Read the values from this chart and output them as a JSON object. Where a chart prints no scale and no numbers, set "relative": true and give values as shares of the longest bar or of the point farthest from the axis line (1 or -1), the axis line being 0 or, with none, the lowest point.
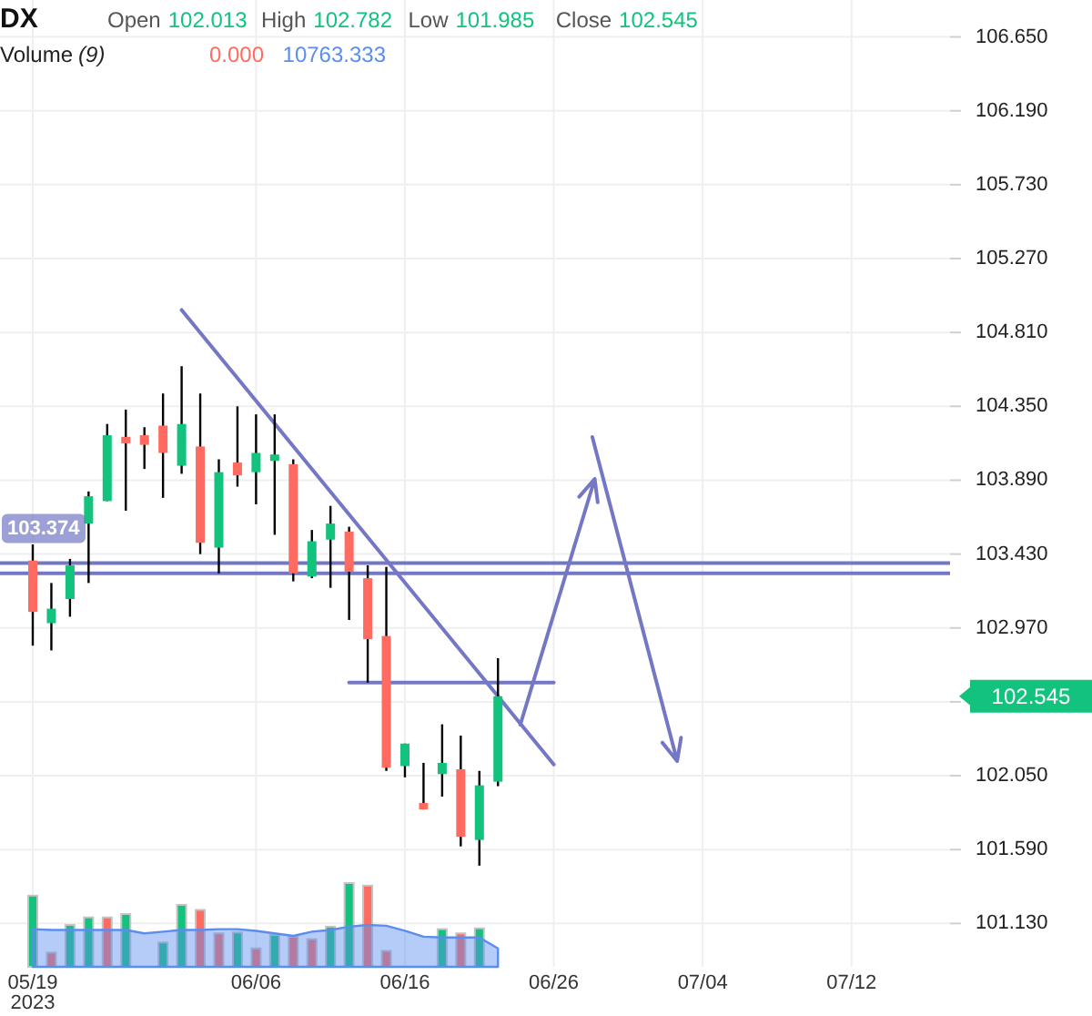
{
  "chart_data": [
    {
      "type": "candlestick",
      "title": "DX",
      "annotations": [
        "Open 102.013",
        "High 102.782",
        "Low 101.985",
        "Close 102.545",
        "102.545"
      ],
      "categories": [
        "05/19\n2023",
        null,
        null,
        null,
        null,
        null,
        null,
        null,
        null,
        null,
        null,
        null,
        "06/06",
        null,
        null,
        null,
        null,
        null,
        null,
        null,
        "06/16",
        null,
        null,
        null,
        null,
        null,
        null,
        null,
        "06/26",
        null,
        null,
        null,
        null,
        null,
        null,
        null,
        "07/04",
        null,
        null,
        null,
        null,
        null,
        null,
        null,
        "07/12",
        null,
        null,
        null,
        null,
        null
      ],
      "ohlc": [
        [
          103.39,
          103.49,
          102.86,
          103.07
        ],
        [
          103.0,
          103.25,
          102.83,
          103.09
        ],
        [
          103.15,
          103.4,
          103.04,
          103.36
        ],
        [
          103.62,
          103.82,
          103.25,
          103.79
        ],
        [
          103.76,
          104.24,
          103.76,
          104.17
        ],
        [
          104.16,
          104.33,
          103.7,
          104.12
        ],
        [
          104.17,
          104.22,
          103.96,
          104.11
        ],
        [
          104.23,
          104.43,
          103.78,
          104.06
        ],
        [
          103.98,
          104.6,
          103.93,
          104.24
        ],
        [
          104.1,
          104.43,
          103.43,
          103.5
        ],
        [
          103.47,
          104.02,
          103.31,
          103.94
        ],
        [
          104.0,
          104.35,
          103.85,
          103.92
        ],
        [
          103.94,
          104.3,
          103.74,
          104.06
        ],
        [
          104.01,
          104.3,
          103.55,
          104.05
        ],
        [
          103.99,
          104.02,
          103.26,
          103.31
        ],
        [
          103.29,
          103.58,
          103.28,
          103.51
        ],
        [
          103.52,
          103.73,
          103.22,
          103.62
        ],
        [
          103.57,
          103.6,
          103.02,
          103.32
        ],
        [
          103.28,
          103.36,
          102.63,
          102.9
        ],
        [
          102.92,
          103.35,
          102.08,
          102.1
        ],
        [
          102.11,
          102.25,
          102.04,
          102.25
        ],
        [
          101.88,
          102.13,
          101.84,
          101.84
        ],
        [
          102.06,
          102.37,
          101.92,
          102.13
        ],
        [
          102.09,
          102.3,
          101.61,
          101.67
        ],
        [
          101.65,
          102.08,
          101.49,
          101.99
        ],
        [
          102.013,
          102.782,
          101.985,
          102.545
        ],
        null,
        null,
        null,
        null,
        null,
        null,
        null,
        null,
        null,
        null,
        null,
        null,
        null,
        null,
        null,
        null,
        null,
        null,
        null,
        null,
        null,
        null,
        null,
        null
      ],
      "colors": [
        "#ff6b60",
        "#12c27d",
        "#12c27d",
        "#12c27d",
        "#12c27d",
        "#ff6b60",
        "#ff6b60",
        "#ff6b60",
        "#12c27d",
        "#ff6b60",
        "#12c27d",
        "#ff6b60",
        "#12c27d",
        "#12c27d",
        "#ff6b60",
        "#12c27d",
        "#12c27d",
        "#ff6b60",
        "#ff6b60",
        "#ff6b60",
        "#12c27d",
        "#ff6b60",
        "#12c27d",
        "#ff6b60",
        "#12c27d",
        "#12c27d",
        null,
        null,
        null,
        null,
        null,
        null,
        null,
        null,
        null,
        null,
        null,
        null,
        null,
        null,
        null,
        null,
        null,
        null,
        null,
        null,
        null,
        null,
        null,
        null
      ],
      "series": [
        {
          "type": "line",
          "color": "#7478c4",
          "values": [
            null,
            null,
            null,
            null,
            null,
            null,
            null,
            null,
            104.95,
            null,
            null,
            null,
            null,
            null,
            null,
            null,
            null,
            null,
            null,
            null,
            null,
            null,
            null,
            null,
            null,
            null,
            null,
            null,
            102.12,
            null,
            null,
            null,
            null,
            null,
            null,
            null,
            null,
            null,
            null,
            null,
            null,
            null,
            null,
            null,
            null,
            null,
            null,
            null,
            null,
            null
          ]
        },
        {
          "type": "line",
          "color": "#7478c4",
          "values": [
            null,
            null,
            null,
            null,
            null,
            null,
            null,
            null,
            null,
            null,
            null,
            null,
            null,
            null,
            null,
            null,
            null,
            102.63,
            null,
            null,
            null,
            null,
            null,
            null,
            null,
            null,
            null,
            null,
            102.63,
            null,
            null,
            null,
            null,
            null,
            null,
            null,
            null,
            null,
            null,
            null,
            null,
            null,
            null,
            null,
            null,
            null,
            null,
            null,
            null,
            null
          ]
        }
      ],
      "ylim": [
        100.86,
        106.88
      ],
      "yticks": [
        {
          "value": 106.65,
          "label": "106.650"
        },
        {
          "value": 106.19,
          "label": "106.190"
        },
        {
          "value": 105.73,
          "label": "105.730"
        },
        {
          "value": 105.27,
          "label": "105.270"
        },
        {
          "value": 104.81,
          "label": "104.810"
        },
        {
          "value": 104.35,
          "label": "104.350"
        },
        {
          "value": 103.89,
          "label": "103.890"
        },
        {
          "value": 103.43,
          "label": "103.430"
        },
        {
          "value": 102.97,
          "label": "102.970"
        },
        {
          "value": 102.51,
          "label": null
        },
        {
          "value": 102.05,
          "label": "102.050"
        },
        {
          "value": 101.59,
          "label": "101.590"
        },
        {
          "value": 101.13,
          "label": "101.130"
        }
      ],
      "grid": true,
      "ref_lines": [
        {
          "axis": "y",
          "value": 103.374,
          "label": "103.374",
          "color": "#7478c4"
        },
        {
          "axis": "y",
          "value": 103.31,
          "color": "#7478c4"
        }
      ]
    },
    {
      "type": "bar",
      "title": "Volume (9)",
      "relative": true,
      "annotations": [
        "0.000",
        "10763.333"
      ],
      "categories": [
        null,
        null,
        null,
        null,
        null,
        null,
        null,
        null,
        null,
        null,
        null,
        null,
        null,
        null,
        null,
        null,
        null,
        null,
        null,
        null,
        null,
        null,
        null,
        null,
        null,
        null,
        null,
        null,
        null,
        null,
        null,
        null,
        null,
        null,
        null,
        null,
        null,
        null,
        null,
        null,
        null,
        null,
        null,
        null,
        null,
        null,
        null,
        null,
        null,
        null
      ],
      "series": [
        {
          "values": [
            0.85,
            0.17,
            0.5,
            0.59,
            0.59,
            0.63,
            null,
            0.29,
            0.74,
            0.68,
            0.4,
            0.41,
            0.22,
            0.38,
            0.36,
            0.33,
            0.48,
            1,
            0.97,
            0.19,
            null,
            null,
            0.45,
            0.4,
            0.46,
            null,
            null,
            null,
            null,
            null,
            null,
            null,
            null,
            null,
            null,
            null,
            null,
            null,
            null,
            null,
            null,
            null,
            null,
            null,
            null,
            null,
            null,
            null,
            null,
            null
          ],
          "colors": [
            "#12c27d",
            "#ff6b60",
            "#12c27d",
            "#12c27d",
            "#ff6b60",
            "#12c27d",
            null,
            "#12c27d",
            "#12c27d",
            "#ff6b60",
            "#ff6b60",
            "#12c27d",
            "#ff6b60",
            "#12c27d",
            "#ff6b60",
            "#ff6b60",
            "#12c27d",
            "#12c27d",
            "#ff6b60",
            "#ff6b60",
            null,
            null,
            "#12c27d",
            "#ff6b60",
            "#12c27d",
            "#ff6b60",
            null,
            null,
            null,
            null,
            null,
            null,
            null,
            null,
            null,
            null,
            null,
            null,
            null,
            null,
            null,
            null,
            null,
            null,
            null,
            null,
            null,
            null,
            null,
            null
          ]
        },
        {
          "type": "area",
          "color": "#5b8def",
          "values": [
            0.45,
            0.44,
            0.44,
            0.44,
            0.44,
            0.44,
            0.4,
            0.42,
            0.44,
            0.44,
            0.45,
            0.45,
            0.43,
            0.4,
            0.37,
            0.42,
            0.44,
            0.48,
            0.5,
            0.49,
            0.43,
            0.36,
            0.35,
            0.35,
            0.35,
            0.22,
            null,
            null,
            null,
            null,
            null,
            null,
            null,
            null,
            null,
            null,
            null,
            null,
            null,
            null,
            null,
            null,
            null,
            null,
            null,
            null,
            null,
            null,
            null,
            null
          ]
        }
      ]
    }
  ]
}
